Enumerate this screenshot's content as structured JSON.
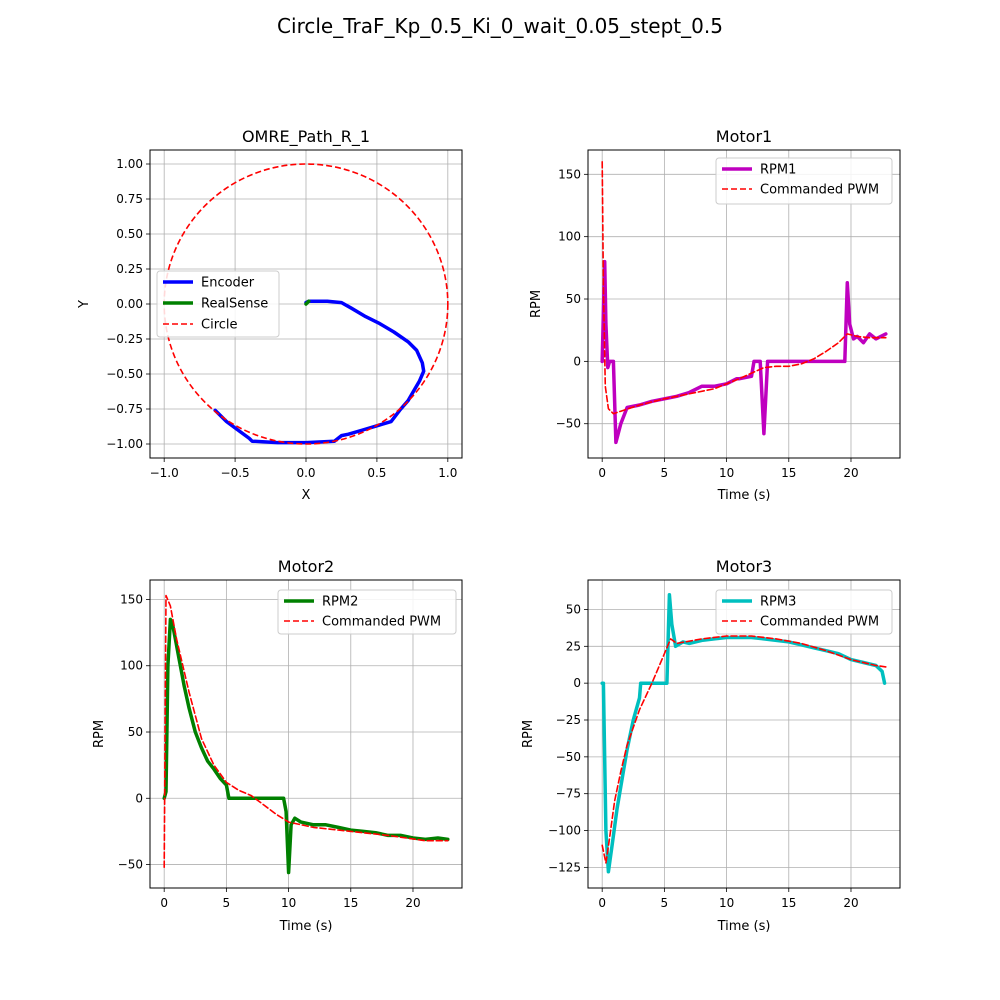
{
  "suptitle": "Circle_TraF_Kp_0.5_Ki_0_wait_0.05_stept_0.5",
  "colors": {
    "encoder": "#0000ff",
    "realsense": "#008000",
    "circle": "#ff0000",
    "rpm1": "#bf00bf",
    "rpm2": "#008000",
    "rpm3": "#00bfbf",
    "pwm": "#ff0000",
    "grid": "#b0b0b0"
  },
  "chart_data": [
    {
      "id": "path",
      "type": "line",
      "title": "OMRE_Path_R_1",
      "xlabel": "X",
      "ylabel": "Y",
      "xlim": [
        -1.1,
        1.1
      ],
      "ylim": [
        -1.1,
        1.1
      ],
      "xticks": [
        -1.0,
        -0.5,
        0.0,
        0.5,
        1.0
      ],
      "xtick_labels": [
        "−1.0",
        "−0.5",
        "0.0",
        "0.5",
        "1.0"
      ],
      "yticks": [
        1.0,
        0.75,
        0.5,
        0.25,
        0.0,
        -0.25,
        -0.5,
        -0.75,
        -1.0
      ],
      "ytick_labels": [
        "1.00",
        "0.75",
        "0.50",
        "0.25",
        "0.00",
        "−0.25",
        "−0.50",
        "−0.75",
        "−1.00"
      ],
      "grid": true,
      "legend_position": "center-left",
      "series": [
        {
          "name": "Encoder",
          "style": "solid",
          "color": "#0000ff",
          "x": [
            0.0,
            0.02,
            0.15,
            0.25,
            0.32,
            0.42,
            0.52,
            0.62,
            0.72,
            0.78,
            0.82,
            0.83,
            0.8,
            0.76,
            0.72,
            0.66,
            0.6,
            0.5,
            0.4,
            0.3,
            0.25,
            0.2,
            0.0,
            -0.2,
            -0.38,
            -0.4,
            -0.48,
            -0.56,
            -0.64
          ],
          "y": [
            0.01,
            0.02,
            0.02,
            0.01,
            -0.03,
            -0.09,
            -0.14,
            -0.2,
            -0.27,
            -0.33,
            -0.42,
            -0.48,
            -0.55,
            -0.62,
            -0.69,
            -0.76,
            -0.84,
            -0.87,
            -0.9,
            -0.93,
            -0.94,
            -0.98,
            -0.99,
            -0.99,
            -0.98,
            -0.96,
            -0.9,
            -0.84,
            -0.76
          ]
        },
        {
          "name": "RealSense",
          "style": "solid",
          "color": "#008000",
          "x": [
            0.0,
            0.01,
            0.02
          ],
          "y": [
            0.0,
            0.01,
            0.02
          ]
        },
        {
          "name": "Circle",
          "style": "dashed",
          "color": "#ff0000",
          "shape": "circle",
          "center": [
            0,
            0
          ],
          "radius": 1
        }
      ]
    },
    {
      "id": "motor1",
      "type": "line",
      "title": "Motor1",
      "xlabel": "Time (s)",
      "ylabel": "RPM",
      "xlim": [
        -1.14,
        23.94
      ],
      "ylim": [
        -77.5,
        169.5
      ],
      "xticks": [
        0,
        5,
        10,
        15,
        20
      ],
      "xtick_labels": [
        "0",
        "5",
        "10",
        "15",
        "20"
      ],
      "yticks": [
        150,
        100,
        50,
        0,
        -50
      ],
      "ytick_labels": [
        "150",
        "100",
        "50",
        "0",
        "−50"
      ],
      "grid": true,
      "legend_position": "upper-right",
      "series": [
        {
          "name": "RPM1",
          "style": "solid",
          "color": "#bf00bf",
          "x": [
            0,
            0.1,
            0.2,
            0.3,
            0.45,
            0.6,
            0.9,
            1.1,
            1.5,
            2,
            3,
            4,
            5,
            6,
            7,
            8,
            9,
            10,
            10.8,
            11,
            12,
            12.2,
            12.7,
            13,
            13.3,
            13.5,
            15,
            19.5,
            19.7,
            19.9,
            20.2,
            20.5,
            21,
            21.5,
            22,
            22.8
          ],
          "y": [
            0,
            40,
            80,
            30,
            -5,
            0,
            0,
            -65,
            -50,
            -37,
            -35,
            -32,
            -30,
            -28,
            -25,
            -20,
            -20,
            -18,
            -14,
            -14,
            -12,
            0,
            0,
            -58,
            0,
            0,
            0,
            0,
            63,
            30,
            18,
            20,
            15,
            22,
            18,
            22
          ]
        },
        {
          "name": "Commanded PWM",
          "style": "dashed",
          "color": "#ff0000",
          "x": [
            0,
            0.1,
            0.25,
            0.5,
            0.9,
            1.5,
            3,
            5,
            7,
            9,
            11,
            13,
            14,
            15,
            16,
            17,
            18,
            19,
            19.7,
            20.5,
            21.5,
            22.8
          ],
          "y": [
            160,
            60,
            -20,
            -38,
            -42,
            -40,
            -35,
            -30,
            -26,
            -22,
            -14,
            -5,
            -4,
            -4,
            -2,
            2,
            8,
            15,
            22,
            20,
            19,
            19
          ]
        }
      ]
    },
    {
      "id": "motor2",
      "type": "line",
      "title": "Motor2",
      "xlabel": "Time (s)",
      "ylabel": "RPM",
      "xlim": [
        -1.14,
        23.94
      ],
      "ylim": [
        -67.7,
        164.7
      ],
      "xticks": [
        0,
        5,
        10,
        15,
        20
      ],
      "xtick_labels": [
        "0",
        "5",
        "10",
        "15",
        "20"
      ],
      "yticks": [
        150,
        100,
        50,
        0,
        -50
      ],
      "ytick_labels": [
        "150",
        "100",
        "50",
        "0",
        "−50"
      ],
      "grid": true,
      "legend_position": "upper-right",
      "series": [
        {
          "name": "RPM2",
          "style": "solid",
          "color": "#008000",
          "x": [
            0,
            0.15,
            0.3,
            0.5,
            0.7,
            0.9,
            1.2,
            1.6,
            2,
            2.5,
            3,
            3.5,
            4,
            4.5,
            5,
            5.2,
            9.6,
            9.8,
            10,
            10.2,
            10.5,
            11,
            12,
            13,
            14,
            15,
            16,
            17,
            18,
            19,
            20,
            21,
            22,
            22.8
          ],
          "y": [
            0,
            5,
            100,
            135,
            130,
            120,
            105,
            85,
            68,
            50,
            38,
            28,
            22,
            15,
            10,
            0,
            0,
            -10,
            -56,
            -20,
            -15,
            -18,
            -20,
            -20,
            -22,
            -24,
            -25,
            -26,
            -28,
            -28,
            -30,
            -31,
            -30,
            -31
          ]
        },
        {
          "name": "Commanded PWM",
          "style": "dashed",
          "color": "#ff0000",
          "x": [
            0,
            0.15,
            0.5,
            1,
            2,
            3,
            4,
            5,
            6,
            7,
            8,
            9,
            10,
            12,
            15,
            18,
            21,
            22.8
          ],
          "y": [
            -52,
            153,
            145,
            120,
            80,
            45,
            25,
            12,
            6,
            2,
            -5,
            -12,
            -18,
            -22,
            -25,
            -28,
            -32,
            -32
          ]
        }
      ]
    },
    {
      "id": "motor3",
      "type": "line",
      "title": "Motor3",
      "xlabel": "Time (s)",
      "ylabel": "RPM",
      "xlim": [
        -1.14,
        23.94
      ],
      "ylim": [
        -139,
        70
      ],
      "xticks": [
        0,
        5,
        10,
        15,
        20
      ],
      "xtick_labels": [
        "0",
        "5",
        "10",
        "15",
        "20"
      ],
      "yticks": [
        50,
        25,
        0,
        -25,
        -50,
        -75,
        -100,
        -125
      ],
      "ytick_labels": [
        "50",
        "25",
        "0",
        "−25",
        "−50",
        "−75",
        "−100",
        "−125"
      ],
      "grid": true,
      "legend_position": "upper-right",
      "series": [
        {
          "name": "RPM3",
          "style": "solid",
          "color": "#00bfbf",
          "x": [
            0,
            0.1,
            0.3,
            0.5,
            0.8,
            1.2,
            1.6,
            2,
            2.5,
            3,
            3.1,
            5.2,
            5.4,
            5.6,
            5.9,
            6.5,
            7,
            8,
            9,
            10,
            11,
            12,
            13,
            14,
            15,
            16,
            17,
            18,
            19,
            20,
            21,
            22,
            22.5,
            22.7
          ],
          "y": [
            0,
            0,
            -100,
            -128,
            -110,
            -85,
            -65,
            -45,
            -25,
            -10,
            0,
            0,
            60,
            40,
            25,
            28,
            27,
            29,
            30,
            31,
            31,
            31,
            30,
            29,
            28,
            26,
            24,
            22,
            20,
            16,
            14,
            12,
            8,
            0
          ]
        },
        {
          "name": "Commanded PWM",
          "style": "dashed",
          "color": "#ff0000",
          "x": [
            0,
            0.3,
            0.6,
            1,
            1.5,
            2,
            3,
            4,
            5,
            5.5,
            6,
            8,
            10,
            12,
            14,
            16,
            18,
            20,
            22,
            22.8
          ],
          "y": [
            -110,
            -122,
            -105,
            -80,
            -60,
            -42,
            -18,
            0,
            20,
            30,
            27,
            30,
            32,
            32,
            30,
            27,
            22,
            16,
            12,
            11
          ]
        }
      ]
    }
  ]
}
